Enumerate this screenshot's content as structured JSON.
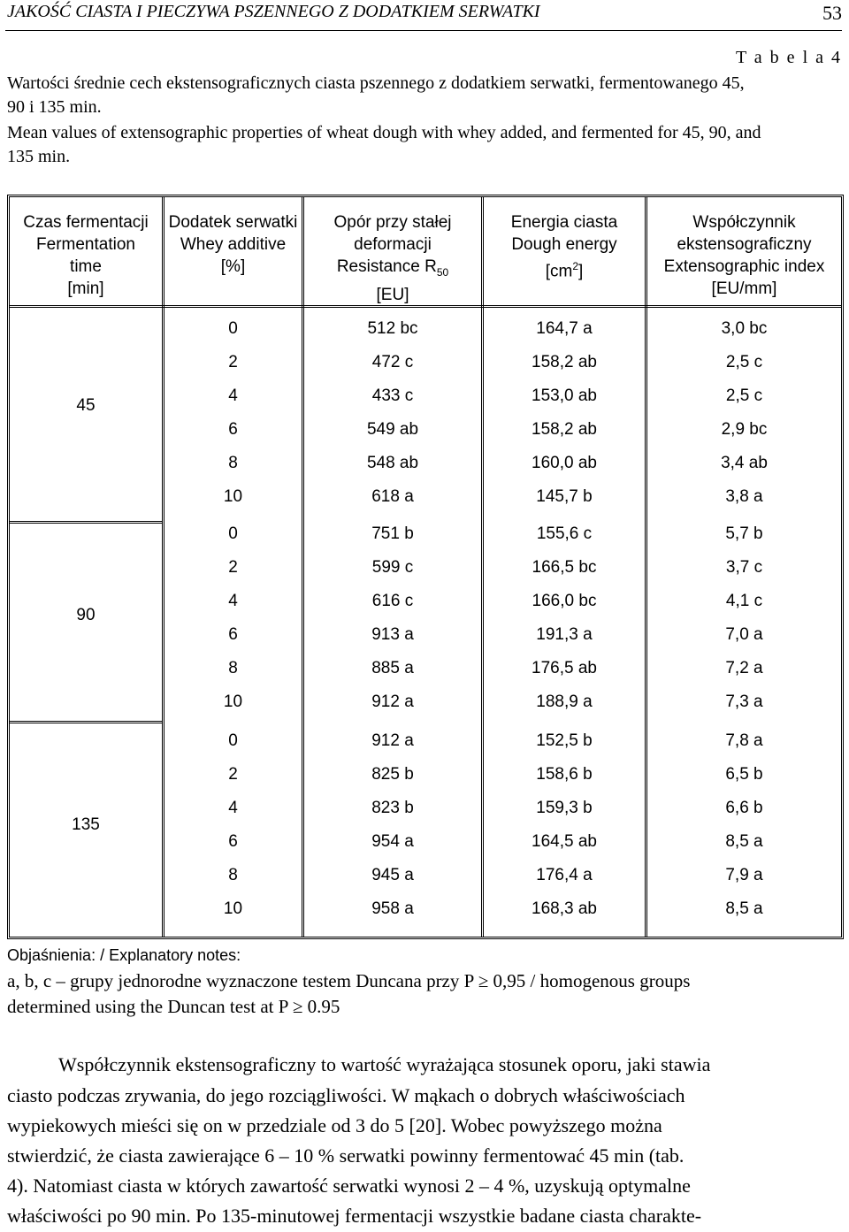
{
  "header": {
    "running_title": "JAKOŚĆ CIASTA I PIECZYWA PSZENNEGO Z DODATKIEM SERWATKI",
    "page_number": "53"
  },
  "table_label": "T a b e l a  4",
  "caption_pl_line1": "Wartości średnie cech ekstensograficznych ciasta pszennego z dodatkiem serwatki, fermentowanego 45,",
  "caption_pl_line2": "90 i 135 min.",
  "caption_en_line1": "Mean values of extensographic properties of wheat dough with whey added, and fermented for 45, 90, and",
  "caption_en_line2": "135 min.",
  "table": {
    "headers": [
      [
        "Czas fermentacji",
        "Fermentation",
        "time",
        "[min]"
      ],
      [
        "Dodatek serwatki",
        "Whey additive",
        "[%]"
      ],
      [
        "Opór przy stałej",
        "deformacji",
        "Resistance R",
        "50",
        "[EU]"
      ],
      [
        "Energia ciasta",
        "Dough energy",
        "[cm",
        "2",
        "]"
      ],
      [
        "Współczynnik",
        "ekstensograficzny",
        "Extensographic index",
        "[EU/mm]"
      ]
    ],
    "groups": [
      {
        "time": "45",
        "rows": [
          [
            "0",
            "512 bc",
            "164,7 a",
            "3,0 bc"
          ],
          [
            "2",
            "472 c",
            "158,2 ab",
            "2,5 c"
          ],
          [
            "4",
            "433 c",
            "153,0 ab",
            "2,5 c"
          ],
          [
            "6",
            "549 ab",
            "158,2 ab",
            "2,9 bc"
          ],
          [
            "8",
            "548 ab",
            "160,0 ab",
            "3,4 ab"
          ],
          [
            "10",
            "618 a",
            "145,7 b",
            "3,8 a"
          ]
        ]
      },
      {
        "time": "90",
        "rows": [
          [
            "0",
            "751 b",
            "155,6 c",
            "5,7 b"
          ],
          [
            "2",
            "599 c",
            "166,5 bc",
            "3,7 c"
          ],
          [
            "4",
            "616 c",
            "166,0 bc",
            "4,1 c"
          ],
          [
            "6",
            "913 a",
            "191,3 a",
            "7,0 a"
          ],
          [
            "8",
            "885 a",
            "176,5 ab",
            "7,2 a"
          ],
          [
            "10",
            "912 a",
            "188,9 a",
            "7,3 a"
          ]
        ]
      },
      {
        "time": "135",
        "rows": [
          [
            "0",
            "912 a",
            "152,5 b",
            "7,8 a"
          ],
          [
            "2",
            "825 b",
            "158,6 b",
            "6,5 b"
          ],
          [
            "4",
            "823 b",
            "159,3 b",
            "6,6 b"
          ],
          [
            "6",
            "954 a",
            "164,5 ab",
            "8,5 a"
          ],
          [
            "8",
            "945 a",
            "176,4 a",
            "7,9 a"
          ],
          [
            "10",
            "958 a",
            "168,3 ab",
            "8,5 a"
          ]
        ]
      }
    ]
  },
  "notes": {
    "title": "Objaśnienia: / Explanatory notes:",
    "line1": "a, b, c – grupy jednorodne wyznaczone testem Duncana przy P ≥ 0,95 / homogenous groups",
    "line2": "determined using the Duncan test at P ≥ 0.95"
  },
  "paragraph": [
    "Współczynnik ekstensograficzny to wartość wyrażająca stosunek oporu, jaki stawia",
    "ciasto podczas zrywania, do jego rozciągliwości. W mąkach o dobrych właściwościach",
    "wypiekowych mieści się on w przedziale od 3 do 5 [20]. Wobec powyższego można",
    "stwierdzić, że ciasta zawierające 6 – 10 % serwatki powinny fermentować 45 min (tab.",
    "4). Natomiast ciasta w których zawartość serwatki wynosi 2 – 4 %, uzyskują optymalne",
    "właściwości po 90 min. Po 135-minutowej fermentacji wszystkie badane ciasta charakte-"
  ]
}
